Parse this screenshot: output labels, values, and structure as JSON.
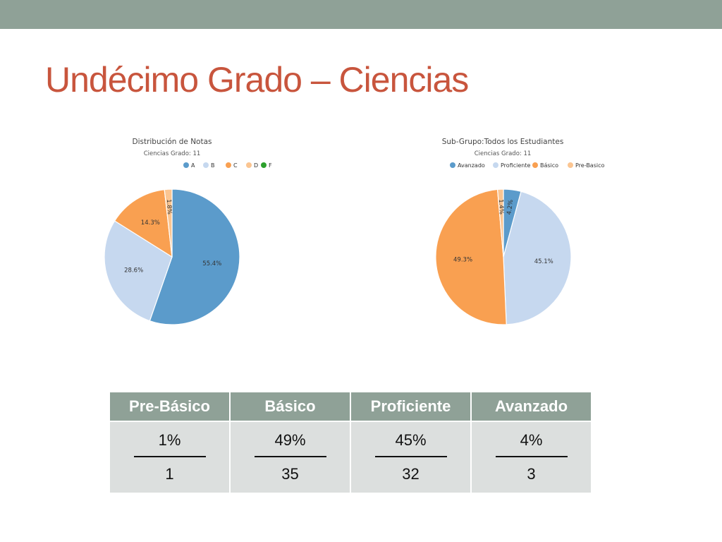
{
  "slide": {
    "title": "Undécimo Grado – Ciencias"
  },
  "chart_data": [
    {
      "type": "pie",
      "title": "Distribución de Notas",
      "subtitle": "Ciencias Grado: 11",
      "legend_position": "top",
      "categories": [
        "A",
        "B",
        "C",
        "D",
        "F"
      ],
      "values": [
        55.4,
        28.6,
        14.3,
        1.8,
        0
      ],
      "labels": [
        "55.4%",
        "28.6%",
        "14.3%",
        "1.8%",
        ""
      ],
      "colors": [
        "#5b9bcb",
        "#c6d8ef",
        "#f9a051",
        "#fbc591",
        "#2ca02c"
      ]
    },
    {
      "type": "pie",
      "title": "Sub-Grupo:Todos los Estudiantes",
      "subtitle": "Ciencias Grado: 11",
      "legend_position": "top",
      "categories": [
        "Avanzado",
        "Proficiente",
        "Básico",
        "Pre-Basico"
      ],
      "values": [
        4.2,
        45.1,
        49.3,
        1.4
      ],
      "labels": [
        "4.2%",
        "45.1%",
        "49.3%",
        "1.4%"
      ],
      "colors": [
        "#5b9bcb",
        "#c6d8ef",
        "#f9a051",
        "#fbc591"
      ]
    }
  ],
  "table": {
    "headers": [
      "Pre-Básico",
      "Básico",
      "Proficiente",
      "Avanzado"
    ],
    "percents": [
      "1%",
      "49%",
      "45%",
      "4%"
    ],
    "counts": [
      "1",
      "35",
      "32",
      "3"
    ]
  }
}
